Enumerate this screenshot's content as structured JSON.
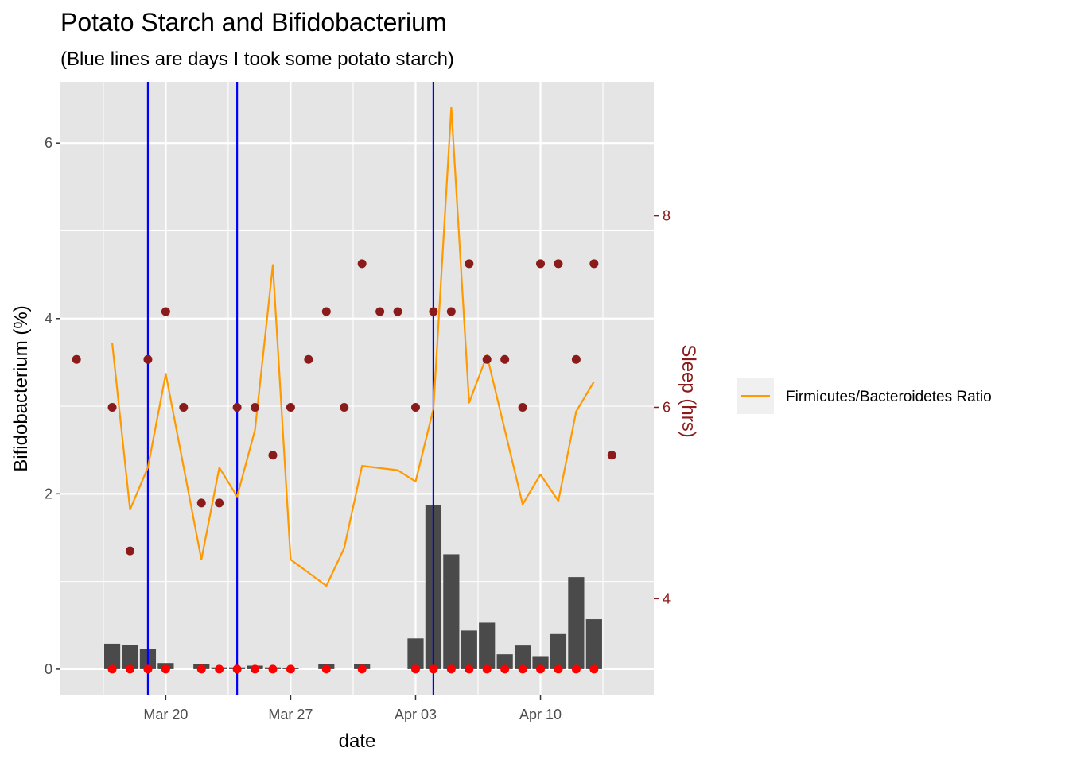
{
  "chart_data": {
    "type": "bar",
    "title": "Potato Starch and Bifidobacterium",
    "subtitle": "(Blue lines are days I took some potato starch)",
    "xlabel": "date",
    "ylabel": "Bifidobacterium (%)",
    "y2label": "Sleep (hrs)",
    "x_range": [
      "2021-03-15",
      "2021-04-16"
    ],
    "x_ticks": [
      {
        "date": "2021-03-20",
        "label": "Mar 20"
      },
      {
        "date": "2021-03-27",
        "label": "Mar 27"
      },
      {
        "date": "2021-04-03",
        "label": "Apr 03"
      },
      {
        "date": "2021-04-10",
        "label": "Apr 10"
      }
    ],
    "ylim": [
      -0.3,
      6.7
    ],
    "y_ticks": [
      0,
      2,
      4,
      6
    ],
    "y2lim": [
      2.99,
      9.4
    ],
    "y2_ticks": [
      4,
      6,
      8
    ],
    "grid": true,
    "legend_position": "right",
    "colors": {
      "bars": "#4a4a4a",
      "panel": "#e5e5e5",
      "grid": "#ffffff",
      "starch_lines": "#0000ff",
      "ratio_line": "#ff9900",
      "sleep_points": "#8b1a1a",
      "zero_points": "#ff0000",
      "y2_axis": "#8b1a1a"
    },
    "starch_days": [
      "2021-03-19",
      "2021-03-24",
      "2021-04-04"
    ],
    "series": [
      {
        "kind": "bar",
        "axis": "left",
        "points": [
          {
            "x": "2021-03-17",
            "y": 0.29
          },
          {
            "x": "2021-03-18",
            "y": 0.28
          },
          {
            "x": "2021-03-19",
            "y": 0.23
          },
          {
            "x": "2021-03-20",
            "y": 0.07
          },
          {
            "x": "2021-03-22",
            "y": 0.06
          },
          {
            "x": "2021-03-23",
            "y": 0.02
          },
          {
            "x": "2021-03-24",
            "y": 0.02
          },
          {
            "x": "2021-03-25",
            "y": 0.04
          },
          {
            "x": "2021-03-26",
            "y": 0.02
          },
          {
            "x": "2021-03-27",
            "y": 0.01
          },
          {
            "x": "2021-03-29",
            "y": 0.06
          },
          {
            "x": "2021-03-31",
            "y": 0.06
          },
          {
            "x": "2021-04-03",
            "y": 0.35
          },
          {
            "x": "2021-04-04",
            "y": 1.87
          },
          {
            "x": "2021-04-05",
            "y": 1.31
          },
          {
            "x": "2021-04-06",
            "y": 0.44
          },
          {
            "x": "2021-04-07",
            "y": 0.53
          },
          {
            "x": "2021-04-08",
            "y": 0.17
          },
          {
            "x": "2021-04-09",
            "y": 0.27
          },
          {
            "x": "2021-04-10",
            "y": 0.14
          },
          {
            "x": "2021-04-11",
            "y": 0.4
          },
          {
            "x": "2021-04-12",
            "y": 1.05
          },
          {
            "x": "2021-04-13",
            "y": 0.57
          }
        ]
      },
      {
        "kind": "points",
        "axis": "left",
        "points": [
          {
            "x": "2021-03-17",
            "y": 0
          },
          {
            "x": "2021-03-18",
            "y": 0
          },
          {
            "x": "2021-03-19",
            "y": 0
          },
          {
            "x": "2021-03-20",
            "y": 0
          },
          {
            "x": "2021-03-22",
            "y": 0
          },
          {
            "x": "2021-03-23",
            "y": 0
          },
          {
            "x": "2021-03-24",
            "y": 0
          },
          {
            "x": "2021-03-25",
            "y": 0
          },
          {
            "x": "2021-03-26",
            "y": 0
          },
          {
            "x": "2021-03-27",
            "y": 0
          },
          {
            "x": "2021-03-29",
            "y": 0
          },
          {
            "x": "2021-03-31",
            "y": 0
          },
          {
            "x": "2021-04-03",
            "y": 0
          },
          {
            "x": "2021-04-04",
            "y": 0
          },
          {
            "x": "2021-04-05",
            "y": 0
          },
          {
            "x": "2021-04-06",
            "y": 0
          },
          {
            "x": "2021-04-07",
            "y": 0
          },
          {
            "x": "2021-04-08",
            "y": 0
          },
          {
            "x": "2021-04-09",
            "y": 0
          },
          {
            "x": "2021-04-10",
            "y": 0
          },
          {
            "x": "2021-04-11",
            "y": 0
          },
          {
            "x": "2021-04-12",
            "y": 0
          },
          {
            "x": "2021-04-13",
            "y": 0
          }
        ]
      },
      {
        "kind": "line",
        "name": "Firmicutes/Bacteroidetes Ratio",
        "axis": "left",
        "points": [
          {
            "x": "2021-03-17",
            "y": 3.72
          },
          {
            "x": "2021-03-18",
            "y": 1.82
          },
          {
            "x": "2021-03-19",
            "y": 2.3
          },
          {
            "x": "2021-03-20",
            "y": 3.37
          },
          {
            "x": "2021-03-22",
            "y": 1.25
          },
          {
            "x": "2021-03-23",
            "y": 2.3
          },
          {
            "x": "2021-03-24",
            "y": 1.97
          },
          {
            "x": "2021-03-25",
            "y": 2.73
          },
          {
            "x": "2021-03-26",
            "y": 4.61
          },
          {
            "x": "2021-03-27",
            "y": 1.25
          },
          {
            "x": "2021-03-29",
            "y": 0.95
          },
          {
            "x": "2021-03-30",
            "y": 1.38
          },
          {
            "x": "2021-03-31",
            "y": 2.32
          },
          {
            "x": "2021-04-02",
            "y": 2.27
          },
          {
            "x": "2021-04-03",
            "y": 2.14
          },
          {
            "x": "2021-04-04",
            "y": 2.97
          },
          {
            "x": "2021-04-05",
            "y": 6.41
          },
          {
            "x": "2021-04-06",
            "y": 3.04
          },
          {
            "x": "2021-04-07",
            "y": 3.58
          },
          {
            "x": "2021-04-09",
            "y": 1.88
          },
          {
            "x": "2021-04-10",
            "y": 2.22
          },
          {
            "x": "2021-04-11",
            "y": 1.92
          },
          {
            "x": "2021-04-12",
            "y": 2.94
          },
          {
            "x": "2021-04-13",
            "y": 3.28
          }
        ]
      },
      {
        "kind": "points",
        "axis": "right",
        "points": [
          {
            "x": "2021-03-15",
            "y": 6.5
          },
          {
            "x": "2021-03-17",
            "y": 6.0
          },
          {
            "x": "2021-03-18",
            "y": 4.5
          },
          {
            "x": "2021-03-19",
            "y": 6.5
          },
          {
            "x": "2021-03-20",
            "y": 7.0
          },
          {
            "x": "2021-03-21",
            "y": 6.0
          },
          {
            "x": "2021-03-22",
            "y": 5.0
          },
          {
            "x": "2021-03-23",
            "y": 5.0
          },
          {
            "x": "2021-03-24",
            "y": 6.0
          },
          {
            "x": "2021-03-25",
            "y": 6.0
          },
          {
            "x": "2021-03-26",
            "y": 5.5
          },
          {
            "x": "2021-03-27",
            "y": 6.0
          },
          {
            "x": "2021-03-28",
            "y": 6.5
          },
          {
            "x": "2021-03-29",
            "y": 7.0
          },
          {
            "x": "2021-03-30",
            "y": 6.0
          },
          {
            "x": "2021-03-31",
            "y": 7.5
          },
          {
            "x": "2021-04-01",
            "y": 7.0
          },
          {
            "x": "2021-04-02",
            "y": 7.0
          },
          {
            "x": "2021-04-03",
            "y": 6.0
          },
          {
            "x": "2021-04-04",
            "y": 7.0
          },
          {
            "x": "2021-04-05",
            "y": 7.0
          },
          {
            "x": "2021-04-06",
            "y": 7.5
          },
          {
            "x": "2021-04-07",
            "y": 6.5
          },
          {
            "x": "2021-04-08",
            "y": 6.5
          },
          {
            "x": "2021-04-09",
            "y": 6.0
          },
          {
            "x": "2021-04-10",
            "y": 7.5
          },
          {
            "x": "2021-04-11",
            "y": 7.5
          },
          {
            "x": "2021-04-12",
            "y": 6.5
          },
          {
            "x": "2021-04-13",
            "y": 7.5
          },
          {
            "x": "2021-04-14",
            "y": 5.5
          }
        ]
      }
    ]
  }
}
